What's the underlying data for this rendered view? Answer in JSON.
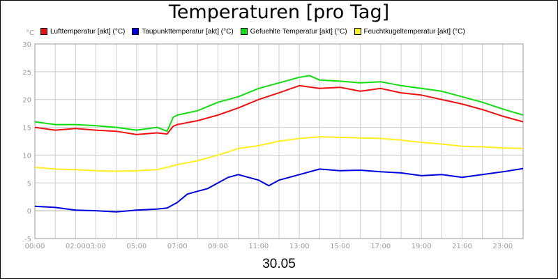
{
  "chart_data": {
    "type": "line",
    "title": "Temperaturen [pro Tag]",
    "ylabel": "°C",
    "xlabel": "30.05",
    "ylim": [
      -5,
      30
    ],
    "yticks": [
      -5,
      0,
      5,
      10,
      15,
      20,
      25,
      30
    ],
    "xlim": [
      0,
      24
    ],
    "xtick_labels": [
      {
        "h": 0,
        "label": "00:00"
      },
      {
        "h": 2,
        "label": "02:00"
      },
      {
        "h": 3,
        "label": "03:00"
      },
      {
        "h": 5,
        "label": "05:00"
      },
      {
        "h": 7,
        "label": "07:00"
      },
      {
        "h": 9,
        "label": "09:00"
      },
      {
        "h": 11,
        "label": "11:00"
      },
      {
        "h": 13,
        "label": "13:00"
      },
      {
        "h": 15,
        "label": "15:00"
      },
      {
        "h": 17,
        "label": "17:00"
      },
      {
        "h": 19,
        "label": "19:00"
      },
      {
        "h": 21,
        "label": "21:00"
      },
      {
        "h": 23,
        "label": "23:00"
      }
    ],
    "grid": true,
    "legend_position": "top",
    "series": [
      {
        "name": "Lufttemperatur [akt] (°C)",
        "color": "#ee1111",
        "x": [
          0,
          1,
          2,
          3,
          4,
          5,
          6,
          6.5,
          6.8,
          7,
          8,
          9,
          10,
          11,
          12,
          13,
          14,
          15,
          16,
          17,
          18,
          19,
          20,
          21,
          22,
          23,
          24
        ],
        "y": [
          15,
          14.5,
          14.8,
          14.5,
          14.3,
          13.7,
          14,
          13.8,
          15.2,
          15.5,
          16.2,
          17.2,
          18.5,
          20,
          21.2,
          22.5,
          22,
          22.2,
          21.5,
          22,
          21.2,
          20.8,
          20,
          19.2,
          18.2,
          17,
          16
        ]
      },
      {
        "name": "Taupunkttemperatur [akt] (°C)",
        "color": "#0000dd",
        "x": [
          0,
          1,
          2,
          3,
          4,
          5,
          6,
          6.5,
          7,
          7.5,
          8,
          8.5,
          9,
          9.5,
          10,
          11,
          11.5,
          12,
          13,
          14,
          15,
          16,
          17,
          18,
          19,
          20,
          21,
          22,
          23,
          24
        ],
        "y": [
          0.8,
          0.6,
          0.1,
          0,
          -0.2,
          0.1,
          0.3,
          0.5,
          1.5,
          3,
          3.5,
          4,
          5,
          6,
          6.5,
          5.5,
          4.5,
          5.5,
          6.5,
          7.5,
          7.2,
          7.3,
          7,
          6.8,
          6.3,
          6.5,
          6,
          6.5,
          7,
          7.6
        ]
      },
      {
        "name": "Gefuehlte Temperatur [akt] (°C)",
        "color": "#11dd11",
        "x": [
          0,
          1,
          2,
          3,
          4,
          5,
          6,
          6.5,
          6.8,
          7,
          8,
          9,
          10,
          11,
          12,
          13,
          13.5,
          14,
          15,
          16,
          17,
          18,
          19,
          20,
          21,
          22,
          23,
          24
        ],
        "y": [
          16,
          15.5,
          15.5,
          15.3,
          15,
          14.5,
          15,
          14.3,
          16.8,
          17.2,
          18,
          19.5,
          20.5,
          22,
          23,
          24,
          24.3,
          23.5,
          23.3,
          23,
          23.2,
          22.5,
          22,
          21.5,
          20.5,
          19.5,
          18.3,
          17.2
        ]
      },
      {
        "name": "Feuchtkugeltemperatur [akt] (°C)",
        "color": "#ffee22",
        "x": [
          0,
          1,
          2,
          3,
          4,
          5,
          6,
          6.5,
          7,
          8,
          9,
          10,
          11,
          12,
          13,
          14,
          15,
          16,
          17,
          18,
          19,
          20,
          21,
          22,
          23,
          24
        ],
        "y": [
          7.8,
          7.5,
          7.4,
          7.2,
          7.1,
          7.2,
          7.4,
          7.8,
          8.3,
          9,
          10,
          11.2,
          11.7,
          12.5,
          13,
          13.3,
          13.2,
          13.1,
          13,
          12.7,
          12.3,
          12,
          11.6,
          11.5,
          11.3,
          11.2
        ]
      }
    ]
  }
}
